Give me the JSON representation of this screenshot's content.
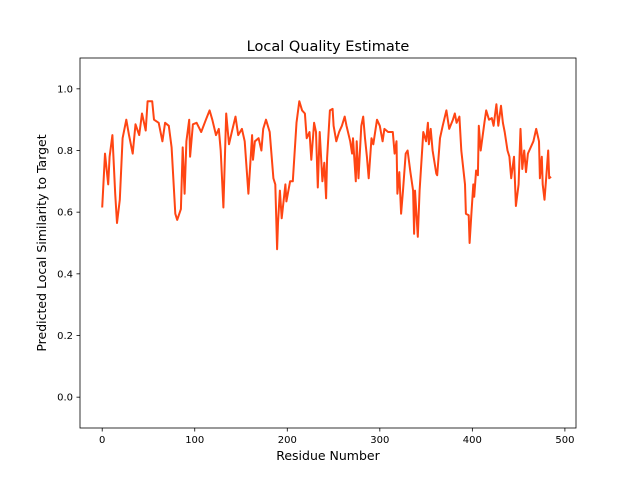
{
  "chart_data": {
    "type": "line",
    "title": "Local Quality Estimate",
    "xlabel": "Residue Number",
    "ylabel": "Predicted Local Similarity to Target",
    "xlim": [
      -24,
      512
    ],
    "ylim": [
      -0.1,
      1.1
    ],
    "xticks": [
      0,
      100,
      200,
      300,
      400,
      500
    ],
    "yticks": [
      0.0,
      0.2,
      0.4,
      0.6,
      0.8,
      1.0
    ],
    "xtick_labels": [
      "0",
      "100",
      "200",
      "300",
      "400",
      "500"
    ],
    "ytick_labels": [
      "0.0",
      "0.2",
      "0.4",
      "0.6",
      "0.8",
      "1.0"
    ],
    "grid": false,
    "legend": "none",
    "color": "#ff4513",
    "x": [
      0,
      3,
      6.5,
      8,
      11,
      14,
      16,
      19,
      22,
      26,
      29,
      33,
      36,
      40,
      43,
      47,
      49,
      54,
      56,
      61,
      65,
      68,
      72,
      75,
      79,
      81,
      85,
      87,
      89,
      91,
      94,
      95,
      98,
      102,
      107,
      112,
      116,
      119,
      123,
      126,
      128,
      131,
      134,
      137,
      140,
      144,
      147,
      151,
      154,
      158,
      162,
      163,
      165,
      169,
      172,
      174,
      177,
      181,
      185,
      187,
      189,
      190,
      192,
      194,
      198,
      199,
      203,
      206,
      210,
      213,
      216,
      219,
      221,
      224,
      226,
      229,
      231,
      233,
      235,
      238,
      240,
      242,
      243,
      246,
      249,
      250,
      253,
      256,
      259,
      262,
      264,
      268,
      270,
      271,
      274,
      275,
      277,
      280,
      282,
      284,
      286,
      288,
      291,
      293,
      297,
      300,
      303,
      305,
      309,
      314,
      316,
      318,
      319,
      321,
      323,
      325,
      328,
      330,
      333,
      336,
      337,
      338,
      341,
      343,
      347,
      350,
      352,
      353,
      355,
      357,
      361,
      362,
      365,
      368,
      372,
      375,
      379,
      381,
      383,
      386,
      388,
      392,
      393,
      396,
      397,
      399,
      401,
      402,
      404,
      406,
      407,
      409,
      413,
      415,
      418,
      421,
      423,
      426,
      428,
      431,
      433,
      435,
      438,
      440,
      442,
      445,
      447,
      450,
      452,
      454,
      456,
      458,
      460,
      463,
      466,
      469,
      472,
      473,
      475,
      476,
      478,
      480,
      482,
      483,
      485
    ],
    "y": [
      0.615,
      0.79,
      0.69,
      0.78,
      0.85,
      0.66,
      0.565,
      0.64,
      0.84,
      0.9,
      0.85,
      0.79,
      0.885,
      0.85,
      0.92,
      0.865,
      0.96,
      0.96,
      0.9,
      0.89,
      0.83,
      0.89,
      0.88,
      0.81,
      0.595,
      0.575,
      0.61,
      0.81,
      0.66,
      0.83,
      0.9,
      0.78,
      0.885,
      0.89,
      0.86,
      0.9,
      0.93,
      0.9,
      0.85,
      0.87,
      0.8,
      0.615,
      0.92,
      0.82,
      0.86,
      0.91,
      0.85,
      0.87,
      0.83,
      0.66,
      0.85,
      0.77,
      0.83,
      0.84,
      0.8,
      0.87,
      0.9,
      0.86,
      0.71,
      0.69,
      0.48,
      0.565,
      0.67,
      0.58,
      0.69,
      0.635,
      0.7,
      0.7,
      0.89,
      0.96,
      0.93,
      0.92,
      0.84,
      0.86,
      0.77,
      0.89,
      0.86,
      0.68,
      0.86,
      0.7,
      0.76,
      0.645,
      0.775,
      0.93,
      0.935,
      0.88,
      0.83,
      0.86,
      0.88,
      0.91,
      0.88,
      0.83,
      0.79,
      0.84,
      0.7,
      0.83,
      0.71,
      0.88,
      0.91,
      0.84,
      0.78,
      0.71,
      0.84,
      0.82,
      0.9,
      0.88,
      0.83,
      0.87,
      0.86,
      0.86,
      0.79,
      0.83,
      0.66,
      0.73,
      0.595,
      0.67,
      0.79,
      0.8,
      0.73,
      0.67,
      0.53,
      0.67,
      0.52,
      0.67,
      0.86,
      0.83,
      0.89,
      0.82,
      0.87,
      0.8,
      0.725,
      0.72,
      0.84,
      0.88,
      0.93,
      0.87,
      0.9,
      0.92,
      0.89,
      0.91,
      0.8,
      0.69,
      0.595,
      0.59,
      0.5,
      0.595,
      0.69,
      0.65,
      0.735,
      0.72,
      0.88,
      0.8,
      0.89,
      0.93,
      0.9,
      0.905,
      0.88,
      0.95,
      0.88,
      0.945,
      0.89,
      0.86,
      0.8,
      0.78,
      0.71,
      0.78,
      0.62,
      0.69,
      0.87,
      0.74,
      0.8,
      0.73,
      0.79,
      0.81,
      0.83,
      0.87,
      0.83,
      0.71,
      0.78,
      0.69,
      0.64,
      0.72,
      0.8,
      0.71,
      0.715
    ]
  }
}
